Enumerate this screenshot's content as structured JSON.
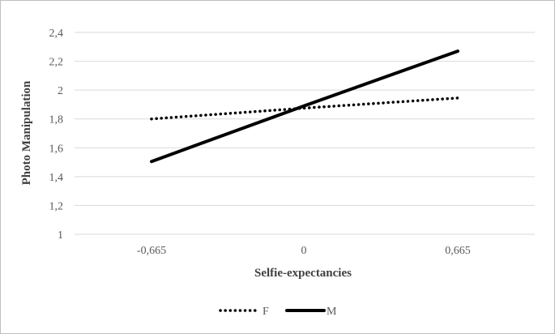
{
  "chart_data": {
    "type": "line",
    "title": "",
    "xlabel": "Selfie-expectancies",
    "ylabel": "Photo Manipulation",
    "categories": [
      "-0,665",
      "0",
      "0,665"
    ],
    "x": [
      -0.665,
      0,
      0.665
    ],
    "ylim": [
      1,
      2.4
    ],
    "yticks": [
      1,
      1.2,
      1.4,
      1.6,
      1.8,
      2,
      2.2,
      2.4
    ],
    "ytick_labels": [
      "1",
      "1,2",
      "1,4",
      "1,6",
      "1,8",
      "2",
      "2,2",
      "2,4"
    ],
    "grid": true,
    "legend_position": "bottom",
    "series": [
      {
        "name": "F",
        "values": [
          1.8,
          1.875,
          1.945
        ],
        "style": "dotted",
        "color": "#000000"
      },
      {
        "name": "M",
        "values": [
          1.505,
          1.89,
          2.27
        ],
        "style": "solid",
        "color": "#000000"
      }
    ]
  }
}
